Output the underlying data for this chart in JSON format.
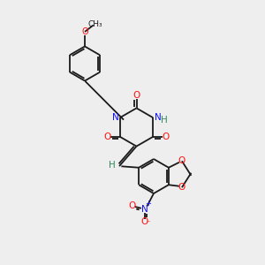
{
  "bg_color": "#eeeeee",
  "bond_color": "#1a1a1a",
  "N_color": "#1010ff",
  "O_color": "#ff1010",
  "H_color": "#2e8b57",
  "lw": 1.3,
  "dbo": 0.07,
  "xlim": [
    0,
    10
  ],
  "ylim": [
    0,
    10
  ]
}
